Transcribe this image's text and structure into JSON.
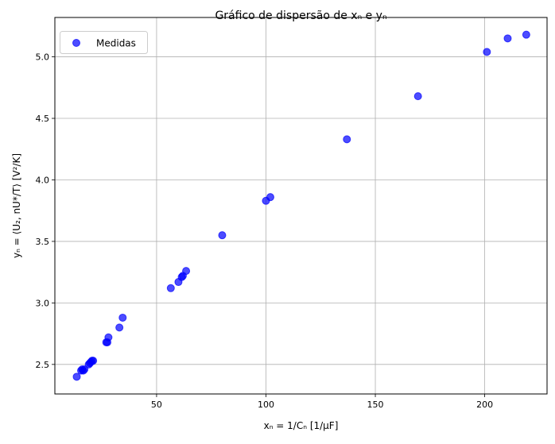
{
  "chart_data": {
    "type": "scatter",
    "title": "Gráfico de dispersão de  xₙ e yₙ",
    "xlabel": "xₙ = 1/Cₙ [1/μF]",
    "ylabel": "yₙ = ⟨U₂, nU*/T⟩ [V²/K]",
    "xlim": [
      3.5,
      228.5
    ],
    "ylim": [
      2.26,
      5.32
    ],
    "x_ticks": [
      50,
      100,
      150,
      200
    ],
    "y_ticks": [
      2.5,
      3.0,
      3.5,
      4.0,
      4.5,
      5.0
    ],
    "x_tick_labels": [
      "50",
      "100",
      "150",
      "200"
    ],
    "y_tick_labels": [
      "2.5",
      "3.0",
      "3.5",
      "4.0",
      "4.5",
      "5.0"
    ],
    "grid": true,
    "legend_position": "top-left",
    "series": [
      {
        "name": "Medidas",
        "color": "#0000ff",
        "alpha": 0.7,
        "points": [
          [
            13.5,
            2.4
          ],
          [
            15.5,
            2.45
          ],
          [
            16.0,
            2.46
          ],
          [
            16.5,
            2.45
          ],
          [
            17.0,
            2.46
          ],
          [
            19.0,
            2.5
          ],
          [
            19.5,
            2.51
          ],
          [
            20.0,
            2.52
          ],
          [
            20.5,
            2.53
          ],
          [
            21.0,
            2.53
          ],
          [
            27.0,
            2.68
          ],
          [
            27.5,
            2.68
          ],
          [
            28.0,
            2.72
          ],
          [
            33.0,
            2.8
          ],
          [
            34.5,
            2.88
          ],
          [
            56.5,
            3.12
          ],
          [
            60.0,
            3.17
          ],
          [
            61.5,
            3.21
          ],
          [
            62.0,
            3.22
          ],
          [
            63.5,
            3.26
          ],
          [
            80.0,
            3.55
          ],
          [
            100.0,
            3.83
          ],
          [
            102.0,
            3.86
          ],
          [
            137.0,
            4.33
          ],
          [
            169.5,
            4.68
          ],
          [
            201.0,
            5.04
          ],
          [
            210.5,
            5.15
          ],
          [
            219.0,
            5.18
          ]
        ]
      }
    ]
  }
}
